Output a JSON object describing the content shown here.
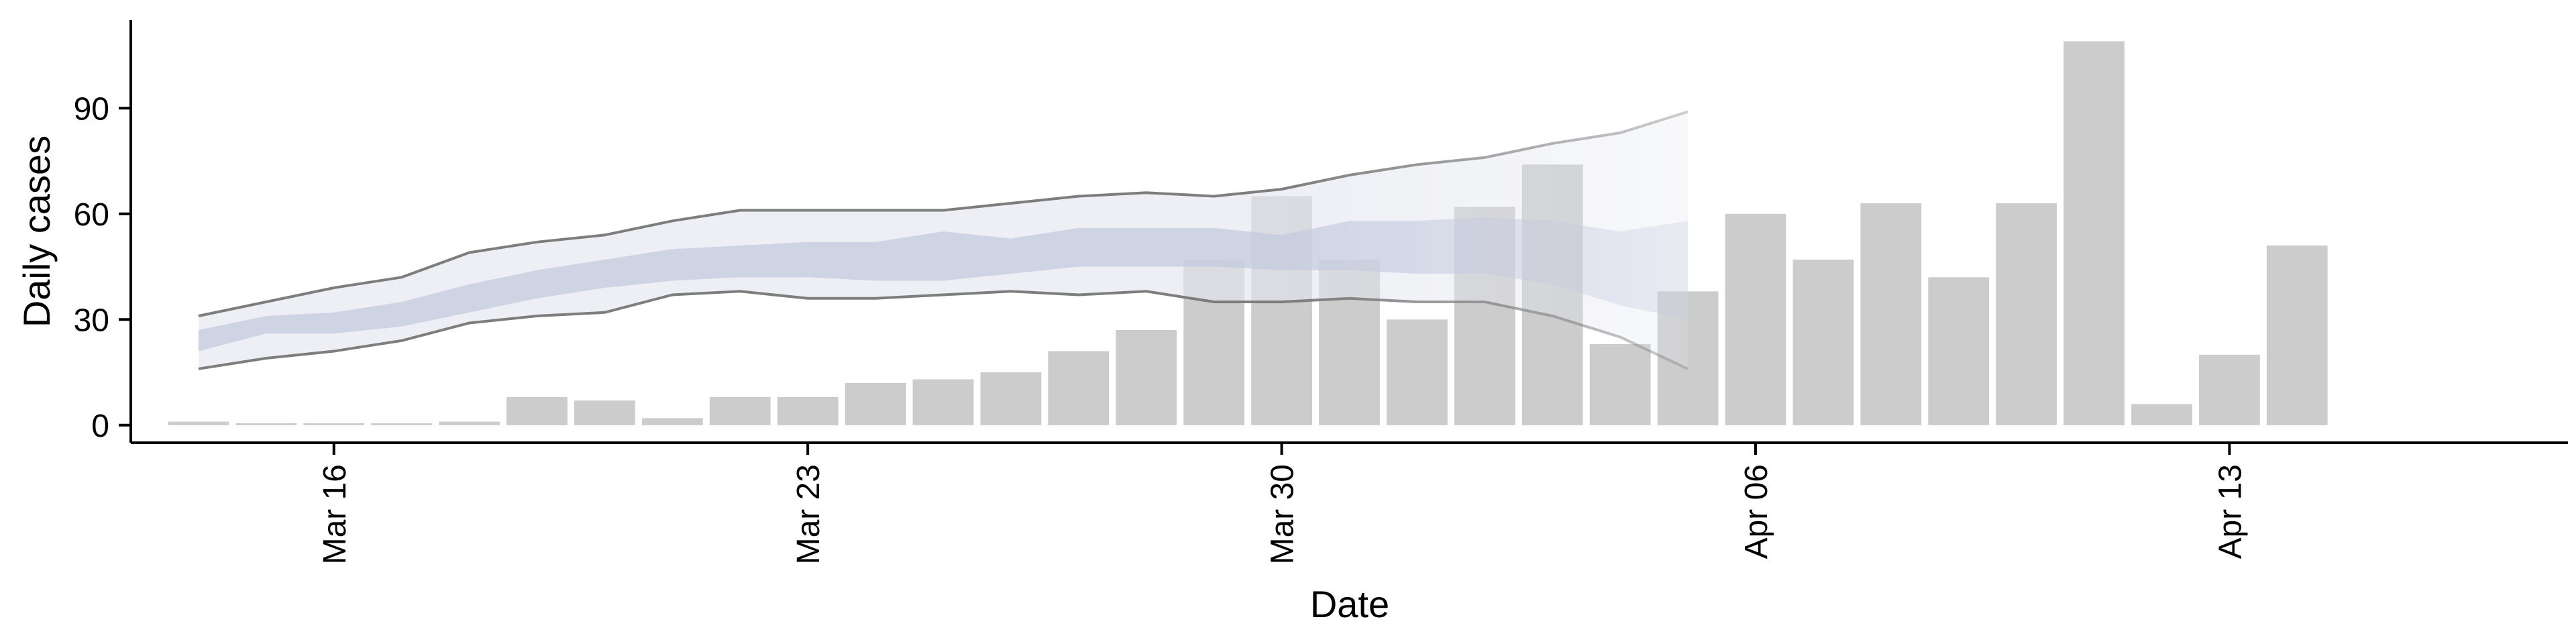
{
  "chart_data": {
    "type": "bar",
    "xlabel": "Date",
    "ylabel": "Daily cases",
    "ylim": [
      -5,
      115
    ],
    "yticks": [
      0,
      30,
      60,
      90
    ],
    "x_range": [
      "2020-03-13",
      "2020-04-18"
    ],
    "xticks": [
      {
        "date": "2020-03-16",
        "label": "Mar 16"
      },
      {
        "date": "2020-03-23",
        "label": "Mar 23"
      },
      {
        "date": "2020-03-30",
        "label": "Mar 30"
      },
      {
        "date": "2020-04-06",
        "label": "Apr 06"
      },
      {
        "date": "2020-04-13",
        "label": "Apr 13"
      }
    ],
    "grid": false,
    "legend": "none",
    "colors": {
      "bars": "#cccccc",
      "band_outer": "#e3e5ee",
      "band_inner": "#c5cbdf",
      "band_lines": "#777777",
      "axes": "#000000"
    },
    "series": [
      {
        "type": "bar",
        "dates": [
          "2020-03-14",
          "2020-03-15",
          "2020-03-16",
          "2020-03-17",
          "2020-03-18",
          "2020-03-19",
          "2020-03-20",
          "2020-03-21",
          "2020-03-22",
          "2020-03-23",
          "2020-03-24",
          "2020-03-25",
          "2020-03-26",
          "2020-03-27",
          "2020-03-28",
          "2020-03-29",
          "2020-03-30",
          "2020-03-31",
          "2020-04-01",
          "2020-04-02",
          "2020-04-03",
          "2020-04-04",
          "2020-04-05",
          "2020-04-06",
          "2020-04-07",
          "2020-04-08",
          "2020-04-09",
          "2020-04-10",
          "2020-04-11",
          "2020-04-12",
          "2020-04-13",
          "2020-04-14",
          "2020-04-15"
        ],
        "values": [
          1,
          0,
          0,
          0,
          1,
          8,
          7,
          2,
          8,
          8,
          12,
          13,
          15,
          21,
          27,
          47,
          65,
          47,
          30,
          62,
          74,
          23,
          38,
          60,
          47,
          63,
          42,
          63,
          109,
          6,
          20,
          51,
          null
        ]
      },
      {
        "type": "area",
        "role": "estimate",
        "dates": [
          "2020-03-14",
          "2020-03-15",
          "2020-03-16",
          "2020-03-17",
          "2020-03-18",
          "2020-03-19",
          "2020-03-20",
          "2020-03-21",
          "2020-03-22",
          "2020-03-23",
          "2020-03-24",
          "2020-03-25",
          "2020-03-26",
          "2020-03-27",
          "2020-03-28",
          "2020-03-29",
          "2020-03-30",
          "2020-03-31",
          "2020-04-01",
          "2020-04-02",
          "2020-04-03",
          "2020-04-04",
          "2020-04-05",
          "2020-04-06"
        ],
        "outer_low": [
          16,
          19,
          21,
          24,
          29,
          31,
          32,
          37,
          38,
          36,
          36,
          37,
          38,
          37,
          38,
          35,
          35,
          36,
          35,
          35,
          31,
          25,
          16,
          null
        ],
        "outer_high": [
          31,
          35,
          39,
          42,
          49,
          52,
          54,
          58,
          61,
          61,
          61,
          61,
          63,
          65,
          66,
          65,
          67,
          71,
          74,
          76,
          80,
          83,
          89,
          null
        ],
        "inner_low": [
          21,
          26,
          26,
          28,
          32,
          36,
          39,
          41,
          42,
          42,
          41,
          41,
          43,
          45,
          45,
          45,
          44,
          44,
          43,
          43,
          40,
          34,
          30,
          null
        ],
        "inner_high": [
          27,
          31,
          32,
          35,
          40,
          44,
          47,
          50,
          51,
          52,
          52,
          55,
          53,
          56,
          56,
          56,
          54,
          58,
          58,
          59,
          58,
          55,
          58,
          null
        ]
      }
    ]
  }
}
